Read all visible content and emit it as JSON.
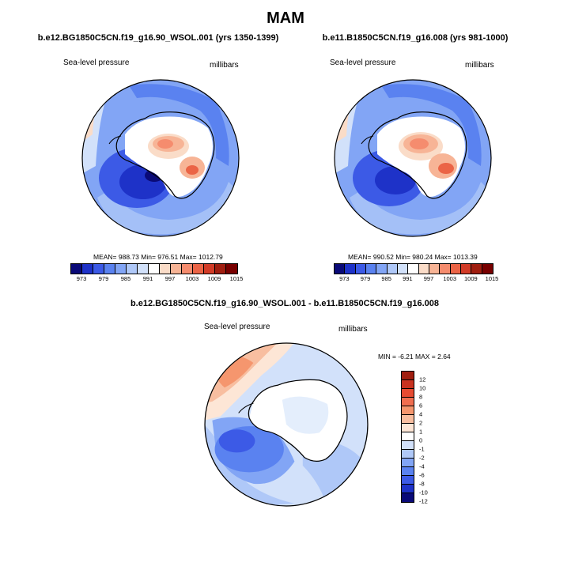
{
  "title": "MAM",
  "panels": [
    {
      "case_title": "b.e12.BG1850C5CN.f19_g16.90_WSOL.001 (yrs 1350-1399)",
      "variable": "Sea-level pressure",
      "units": "millibars",
      "stats": "MEAN= 988.73  Min= 976.51  Max= 1012.79",
      "mean": 988.73,
      "min": 976.51,
      "max": 1012.79
    },
    {
      "case_title": "b.e11.B1850C5CN.f19_g16.008 (yrs 981-1000)",
      "variable": "Sea-level pressure",
      "units": "millibars",
      "stats": "MEAN= 990.52  Min= 980.24  Max= 1013.39",
      "mean": 990.52,
      "min": 980.24,
      "max": 1013.39
    }
  ],
  "colorbar_abs": {
    "colors": [
      "#0a0a78",
      "#1e32c8",
      "#3c5ae6",
      "#5a82f0",
      "#82a5f5",
      "#afc8f8",
      "#d2e1fa",
      "#ffffff",
      "#fadcc8",
      "#f7b496",
      "#f58c6e",
      "#eb6446",
      "#d23c28",
      "#a01e10",
      "#780000"
    ],
    "tick_labels": [
      "973",
      "979",
      "985",
      "991",
      "997",
      "1003",
      "1009",
      "1015"
    ]
  },
  "diff_panel": {
    "case_title": "b.e12.BG1850C5CN.f19_g16.90_WSOL.001 - b.e11.B1850C5CN.f19_g16.008",
    "variable": "Sea-level pressure",
    "units": "millibars",
    "stats": "MIN =  -6.21 MAX =   2.64",
    "min": -6.21,
    "max": 2.64
  },
  "colorbar_diff": {
    "colors": [
      "#a01e10",
      "#c83220",
      "#e64b32",
      "#f06e50",
      "#f5966e",
      "#f8bea0",
      "#fde6d6",
      "#ffffff",
      "#d2e1fa",
      "#afc8f8",
      "#82a5f5",
      "#5a82f0",
      "#3c5ae6",
      "#1e32c8",
      "#0a0a78"
    ],
    "tick_labels": [
      "12",
      "10",
      "8",
      "6",
      "4",
      "2",
      "1",
      "0",
      "-1",
      "-2",
      "-4",
      "-6",
      "-8",
      "-10",
      "-12"
    ]
  }
}
